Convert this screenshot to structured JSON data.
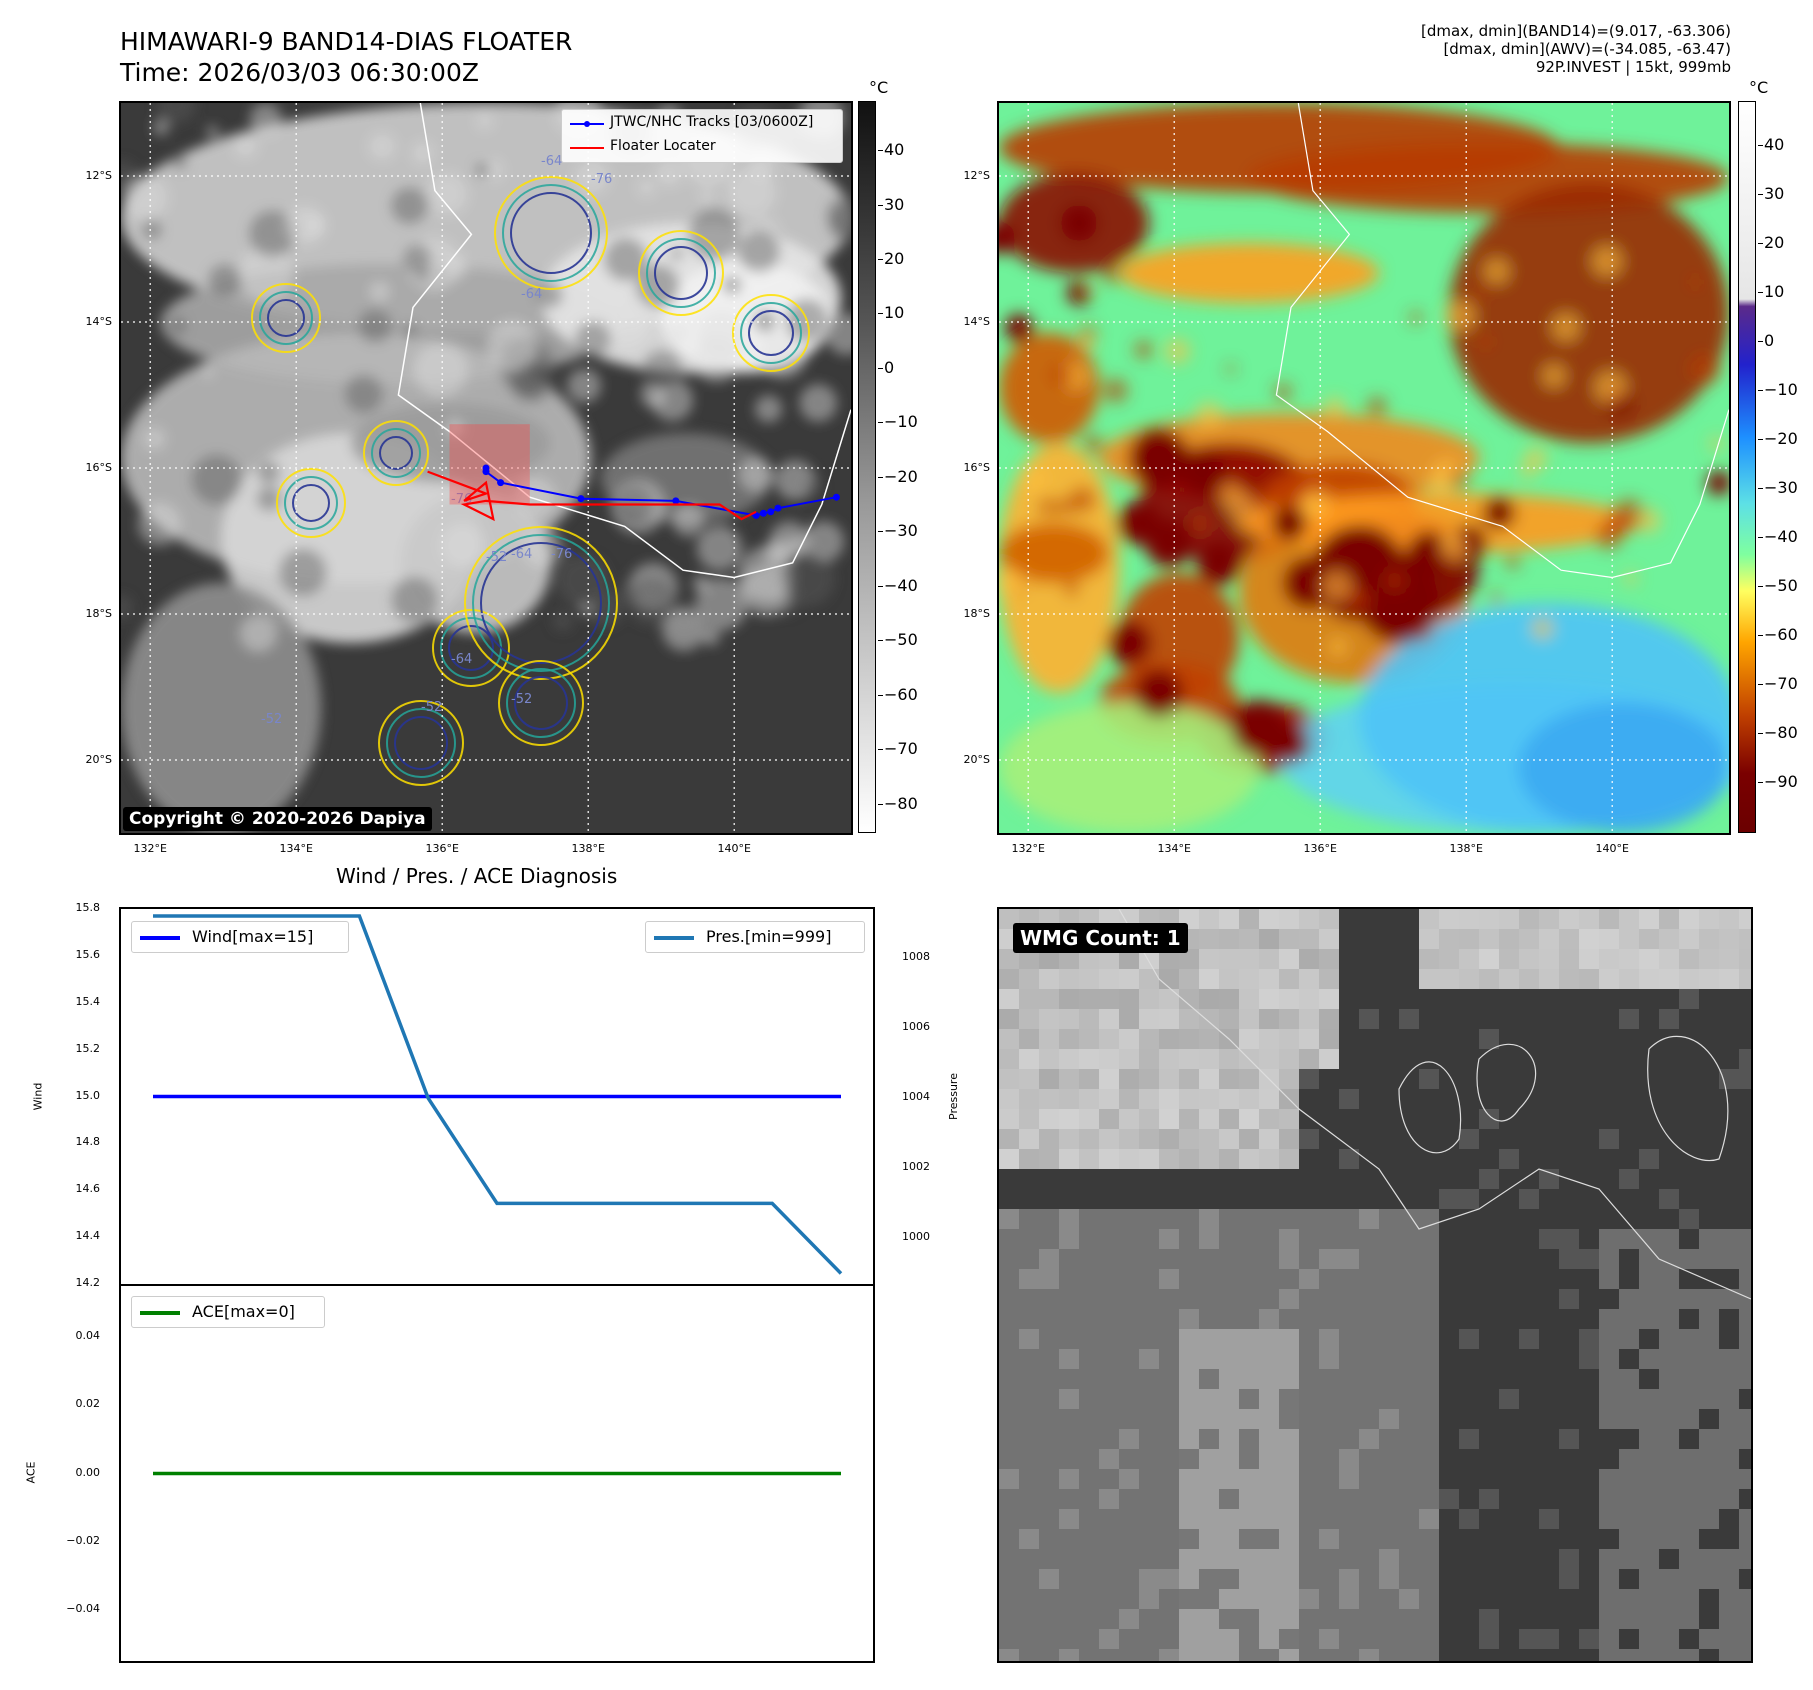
{
  "header": {
    "title_line1": "HIMAWARI-9 BAND14-DIAS FLOATER",
    "title_line2": "Time: 2026/03/03 06:30:00Z",
    "info_line1": "[dmax, dmin](BAND14)=(9.017, -63.306)",
    "info_line2": "[dmax, dmin](AWV)=(-34.085, -63.47)",
    "info_line3": "92P.INVEST | 15kt, 999mb"
  },
  "map": {
    "lat_ticks": [
      "12°S",
      "14°S",
      "16°S",
      "18°S",
      "20°S"
    ],
    "lon_ticks": [
      "132°E",
      "134°E",
      "136°E",
      "138°E",
      "140°E"
    ],
    "lat_values": [
      -12,
      -14,
      -16,
      -18,
      -20
    ],
    "lon_values": [
      132,
      134,
      136,
      138,
      140
    ],
    "lon_range": [
      131.6,
      141.6
    ],
    "lat_range": [
      -21.0,
      -11.0
    ],
    "copyright": "Copyright © 2020-2026 Dapiya",
    "legend": {
      "track": "JTWC/NHC Tracks [03/0600Z]",
      "floater": "Floater Locater"
    },
    "contour_labels": [
      "-64",
      "-76",
      "-64",
      "-76",
      "-52",
      "-64",
      "-76",
      "-52",
      "-64",
      "-52",
      "-52"
    ],
    "track_points": [
      [
        141.4,
        -16.4
      ],
      [
        140.6,
        -16.55
      ],
      [
        140.5,
        -16.6
      ],
      [
        140.4,
        -16.62
      ],
      [
        140.3,
        -16.65
      ],
      [
        139.2,
        -16.45
      ],
      [
        137.9,
        -16.42
      ],
      [
        136.8,
        -16.2
      ],
      [
        136.6,
        -16.05
      ],
      [
        136.6,
        -16.0
      ]
    ],
    "floater_points": [
      [
        135.8,
        -16.05
      ],
      [
        136.6,
        -16.35
      ],
      [
        136.3,
        -16.45
      ],
      [
        136.6,
        -16.2
      ],
      [
        136.7,
        -16.7
      ],
      [
        136.3,
        -16.5
      ],
      [
        136.6,
        -16.45
      ],
      [
        137.2,
        -16.5
      ],
      [
        139.8,
        -16.5
      ],
      [
        140.1,
        -16.7
      ],
      [
        140.3,
        -16.6
      ]
    ],
    "colors": {
      "track": "#0000ff",
      "floater": "#ff0000",
      "coast": "#ffffff"
    }
  },
  "colorbar_left": {
    "unit": "°C",
    "ticks": [
      "40",
      "30",
      "20",
      "10",
      "0",
      "−10",
      "−20",
      "−30",
      "−40",
      "−50",
      "−60",
      "−70",
      "−80"
    ],
    "values": [
      40,
      30,
      20,
      10,
      0,
      -10,
      -20,
      -30,
      -40,
      -50,
      -60,
      -70,
      -80
    ],
    "range": [
      -85,
      49
    ]
  },
  "colorbar_right": {
    "unit": "°C",
    "ticks": [
      "40",
      "30",
      "20",
      "10",
      "0",
      "−10",
      "−20",
      "−30",
      "−40",
      "−50",
      "−60",
      "−70",
      "−80",
      "−90"
    ],
    "values": [
      40,
      30,
      20,
      10,
      0,
      -10,
      -20,
      -30,
      -40,
      -50,
      -60,
      -70,
      -80,
      -90
    ],
    "range": [
      -100,
      49
    ]
  },
  "diag": {
    "title": "Wind / Pres. / ACE Diagnosis",
    "wind_ylabel": "Wind",
    "pres_ylabel": "Pressure",
    "ace_ylabel": "ACE",
    "wind_legend": "Wind[max=15]",
    "pres_legend": "Pres.[min=999]",
    "ace_legend": "ACE[max=0]",
    "wind_ticks": [
      "15.8",
      "15.6",
      "15.4",
      "15.2",
      "15.0",
      "14.8",
      "14.6",
      "14.4",
      "14.2"
    ],
    "wind_tick_values": [
      15.8,
      15.6,
      15.4,
      15.2,
      15.0,
      14.8,
      14.6,
      14.4,
      14.2
    ],
    "wind_range": [
      14.2,
      15.8
    ],
    "pres_ticks": [
      "1008",
      "1006",
      "1004",
      "1002",
      "1000"
    ],
    "pres_tick_values": [
      1008,
      1006,
      1004,
      1002,
      1000
    ],
    "pres_range": [
      998.7,
      1009.4
    ],
    "ace_ticks": [
      "0.04",
      "0.02",
      "0.00",
      "−0.02",
      "−0.04"
    ],
    "ace_tick_values": [
      0.04,
      0.02,
      0.0,
      -0.02,
      -0.04
    ],
    "ace_range": [
      -0.055,
      0.055
    ],
    "colors": {
      "wind": "#0000ff",
      "pres": "#1f77b4",
      "ace": "#008000"
    }
  },
  "chart_data": {
    "type": "line",
    "x": [
      0,
      1,
      2,
      3,
      4,
      5,
      6,
      7,
      8,
      9,
      10
    ],
    "series": [
      {
        "name": "Wind[max=15]",
        "values": [
          15,
          15,
          15,
          15,
          15,
          15,
          15,
          15,
          15,
          15,
          15
        ]
      },
      {
        "name": "Pres.[min=999]",
        "values": [
          1009.2,
          1009.2,
          1009.2,
          1009.2,
          1004,
          1001,
          1001,
          1001,
          1001,
          1001,
          999
        ]
      },
      {
        "name": "ACE[max=0]",
        "values": [
          0,
          0,
          0,
          0,
          0,
          0,
          0,
          0,
          0,
          0,
          0
        ]
      }
    ],
    "title": "Wind / Pres. / ACE Diagnosis",
    "xlabel": "",
    "ylabel": "Wind",
    "grid": false
  },
  "wmg": {
    "label": "WMG Count: 1"
  }
}
